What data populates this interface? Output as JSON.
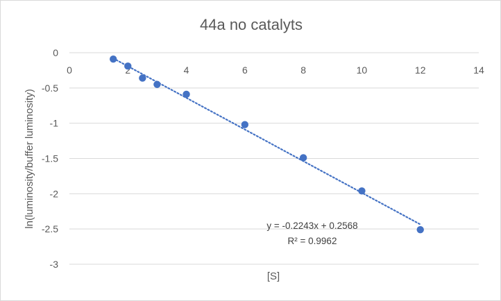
{
  "chart_data": {
    "type": "scatter",
    "title": "44a no catalyts",
    "xlabel": "[S]",
    "ylabel": "ln(luminosity/buffer luminosity)",
    "xlim": [
      0,
      14
    ],
    "ylim": [
      -3,
      0
    ],
    "x_ticks": [
      "0",
      "2",
      "4",
      "6",
      "8",
      "10",
      "12",
      "14"
    ],
    "y_ticks": [
      "0",
      "-0.5",
      "-1",
      "-1.5",
      "-2",
      "-2.5",
      "-3"
    ],
    "grid": "horizontal",
    "legend": "none",
    "series": [
      {
        "points": [
          {
            "x": 1.5,
            "y": -0.09
          },
          {
            "x": 2.0,
            "y": -0.19
          },
          {
            "x": 2.5,
            "y": -0.36
          },
          {
            "x": 3.0,
            "y": -0.45
          },
          {
            "x": 4.0,
            "y": -0.59
          },
          {
            "x": 6.0,
            "y": -1.02
          },
          {
            "x": 8.0,
            "y": -1.49
          },
          {
            "x": 10.0,
            "y": -1.96
          },
          {
            "x": 12.0,
            "y": -2.51
          }
        ]
      }
    ],
    "trendline": {
      "type": "linear",
      "slope": -0.2243,
      "intercept": 0.2568,
      "x_range": [
        1.5,
        12
      ],
      "equation": "y = -0.2243x + 0.2568",
      "r_squared": "R² = 0.9962"
    },
    "colors": {
      "marker": "#4472C4",
      "trendline": "#4472C4",
      "grid": "#d9d9d9",
      "text": "#595959"
    }
  }
}
